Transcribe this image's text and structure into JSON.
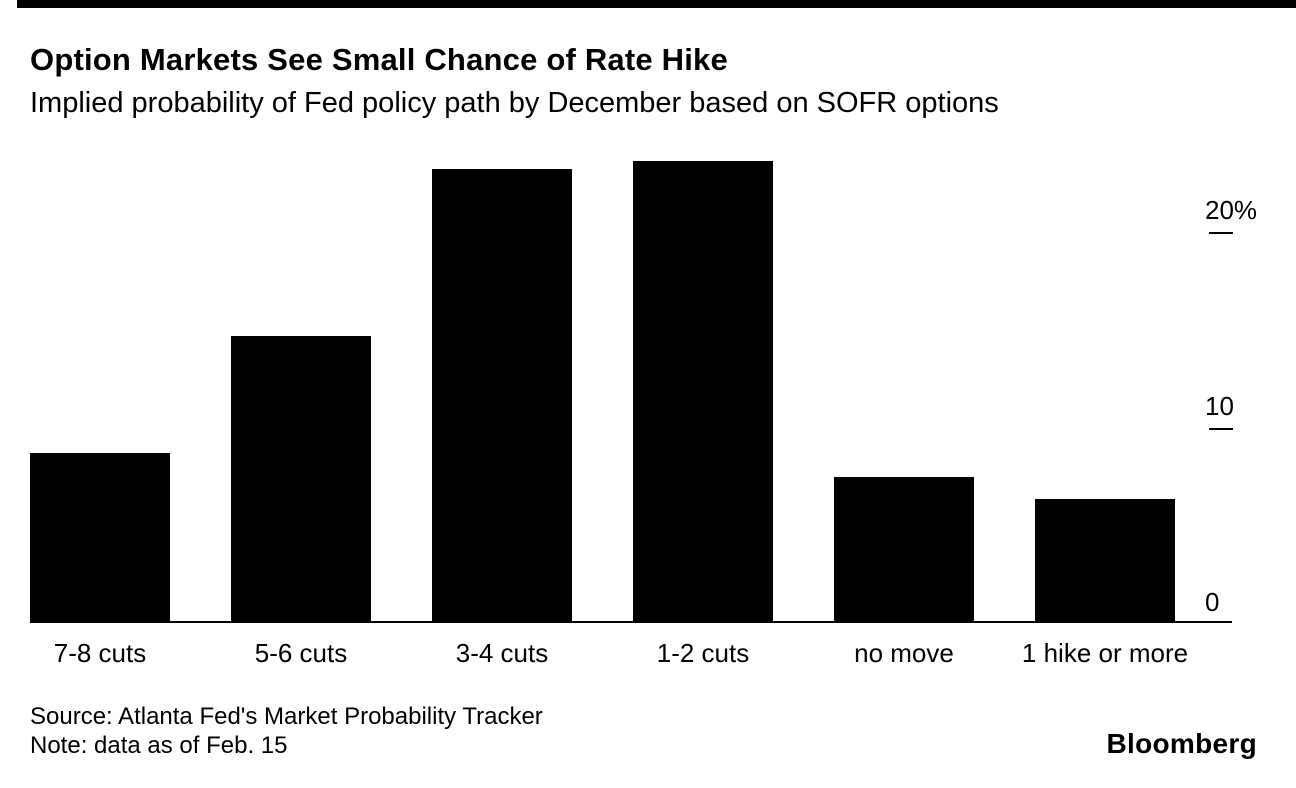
{
  "chart_data": {
    "type": "bar",
    "title": "Option Markets See Small Chance of Rate Hike",
    "subtitle": "Implied probability of Fed policy path by December based on SOFR options",
    "categories": [
      "7-8 cuts",
      "5-6 cuts",
      "3-4 cuts",
      "1-2 cuts",
      "no move",
      "1 hike or more"
    ],
    "values": [
      8.7,
      14.7,
      23.2,
      23.6,
      7.5,
      6.4
    ],
    "unit": "%",
    "y_ticks": [
      {
        "label": "20%",
        "value": 20
      },
      {
        "label": "10",
        "value": 10
      },
      {
        "label": "0",
        "value": 0
      }
    ],
    "ylim": [
      0,
      24
    ],
    "y_axis_side": "right",
    "grid": false,
    "legend": null,
    "bar_color": "#000000",
    "background_color": "#ffffff"
  },
  "footer": {
    "source": "Source: Atlanta Fed's Market Probability Tracker",
    "note": "Note: data as of Feb. 15",
    "brand": "Bloomberg"
  }
}
